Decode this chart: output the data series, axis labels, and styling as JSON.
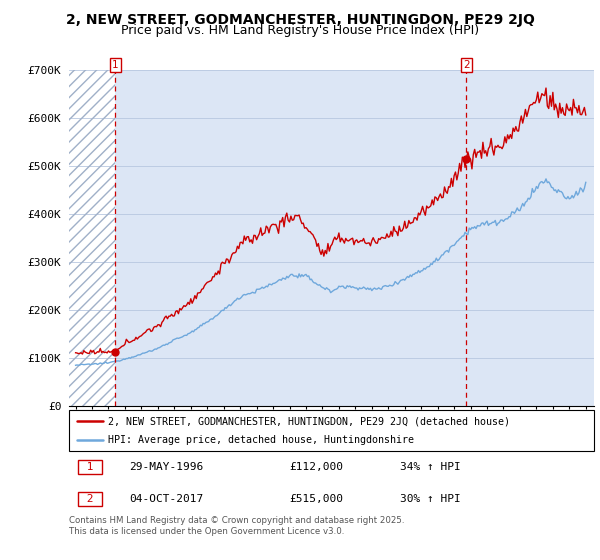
{
  "title": "2, NEW STREET, GODMANCHESTER, HUNTINGDON, PE29 2JQ",
  "subtitle": "Price paid vs. HM Land Registry's House Price Index (HPI)",
  "ylim": [
    0,
    700000
  ],
  "yticks": [
    0,
    100000,
    200000,
    300000,
    400000,
    500000,
    600000,
    700000
  ],
  "ytick_labels": [
    "£0",
    "£100K",
    "£200K",
    "£300K",
    "£400K",
    "£500K",
    "£600K",
    "£700K"
  ],
  "legend_line1": "2, NEW STREET, GODMANCHESTER, HUNTINGDON, PE29 2JQ (detached house)",
  "legend_line2": "HPI: Average price, detached house, Huntingdonshire",
  "footnote": "Contains HM Land Registry data © Crown copyright and database right 2025.\nThis data is licensed under the Open Government Licence v3.0.",
  "marker1_date": "29-MAY-1996",
  "marker1_price": 112000,
  "marker1_label": "34% ↑ HPI",
  "marker2_date": "04-OCT-2017",
  "marker2_price": 515000,
  "marker2_label": "30% ↑ HPI",
  "marker1_x": 1996.41,
  "marker2_x": 2017.75,
  "hatch_end": 1996.41,
  "xlim_start": 1993.6,
  "xlim_end": 2025.5,
  "hpi_color": "#6fa8dc",
  "price_color": "#cc0000",
  "marker_color": "#cc0000",
  "bg_color": "#dce6f5",
  "grid_color": "#b8c8e0",
  "title_fontsize": 10,
  "subtitle_fontsize": 9
}
